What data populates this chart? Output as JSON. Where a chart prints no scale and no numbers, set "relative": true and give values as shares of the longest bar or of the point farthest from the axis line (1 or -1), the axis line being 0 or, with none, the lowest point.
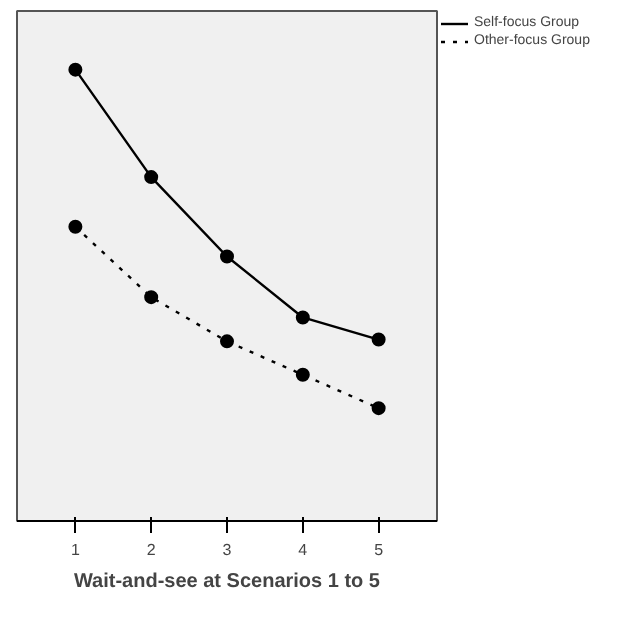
{
  "chart_data": {
    "type": "line",
    "xlabel": "Wait-and-see at Scenarios 1 to 5",
    "x": [
      1,
      2,
      3,
      4,
      5
    ],
    "xlim": [
      0.23,
      5.77
    ],
    "xticks": [
      1,
      2,
      3,
      4,
      5
    ],
    "relative": true,
    "marker": "circle",
    "legend": "top right",
    "series": [
      {
        "name": "Self-focus Group",
        "color": "#000000",
        "line_style": "solid",
        "values": [
          1,
          0.762,
          0.586,
          0.451,
          0.402
        ]
      },
      {
        "name": "Other-focus Group",
        "color": "#000000",
        "line_style": "dotted",
        "values": [
          0.652,
          0.496,
          0.398,
          0.324,
          0.25
        ]
      }
    ]
  }
}
